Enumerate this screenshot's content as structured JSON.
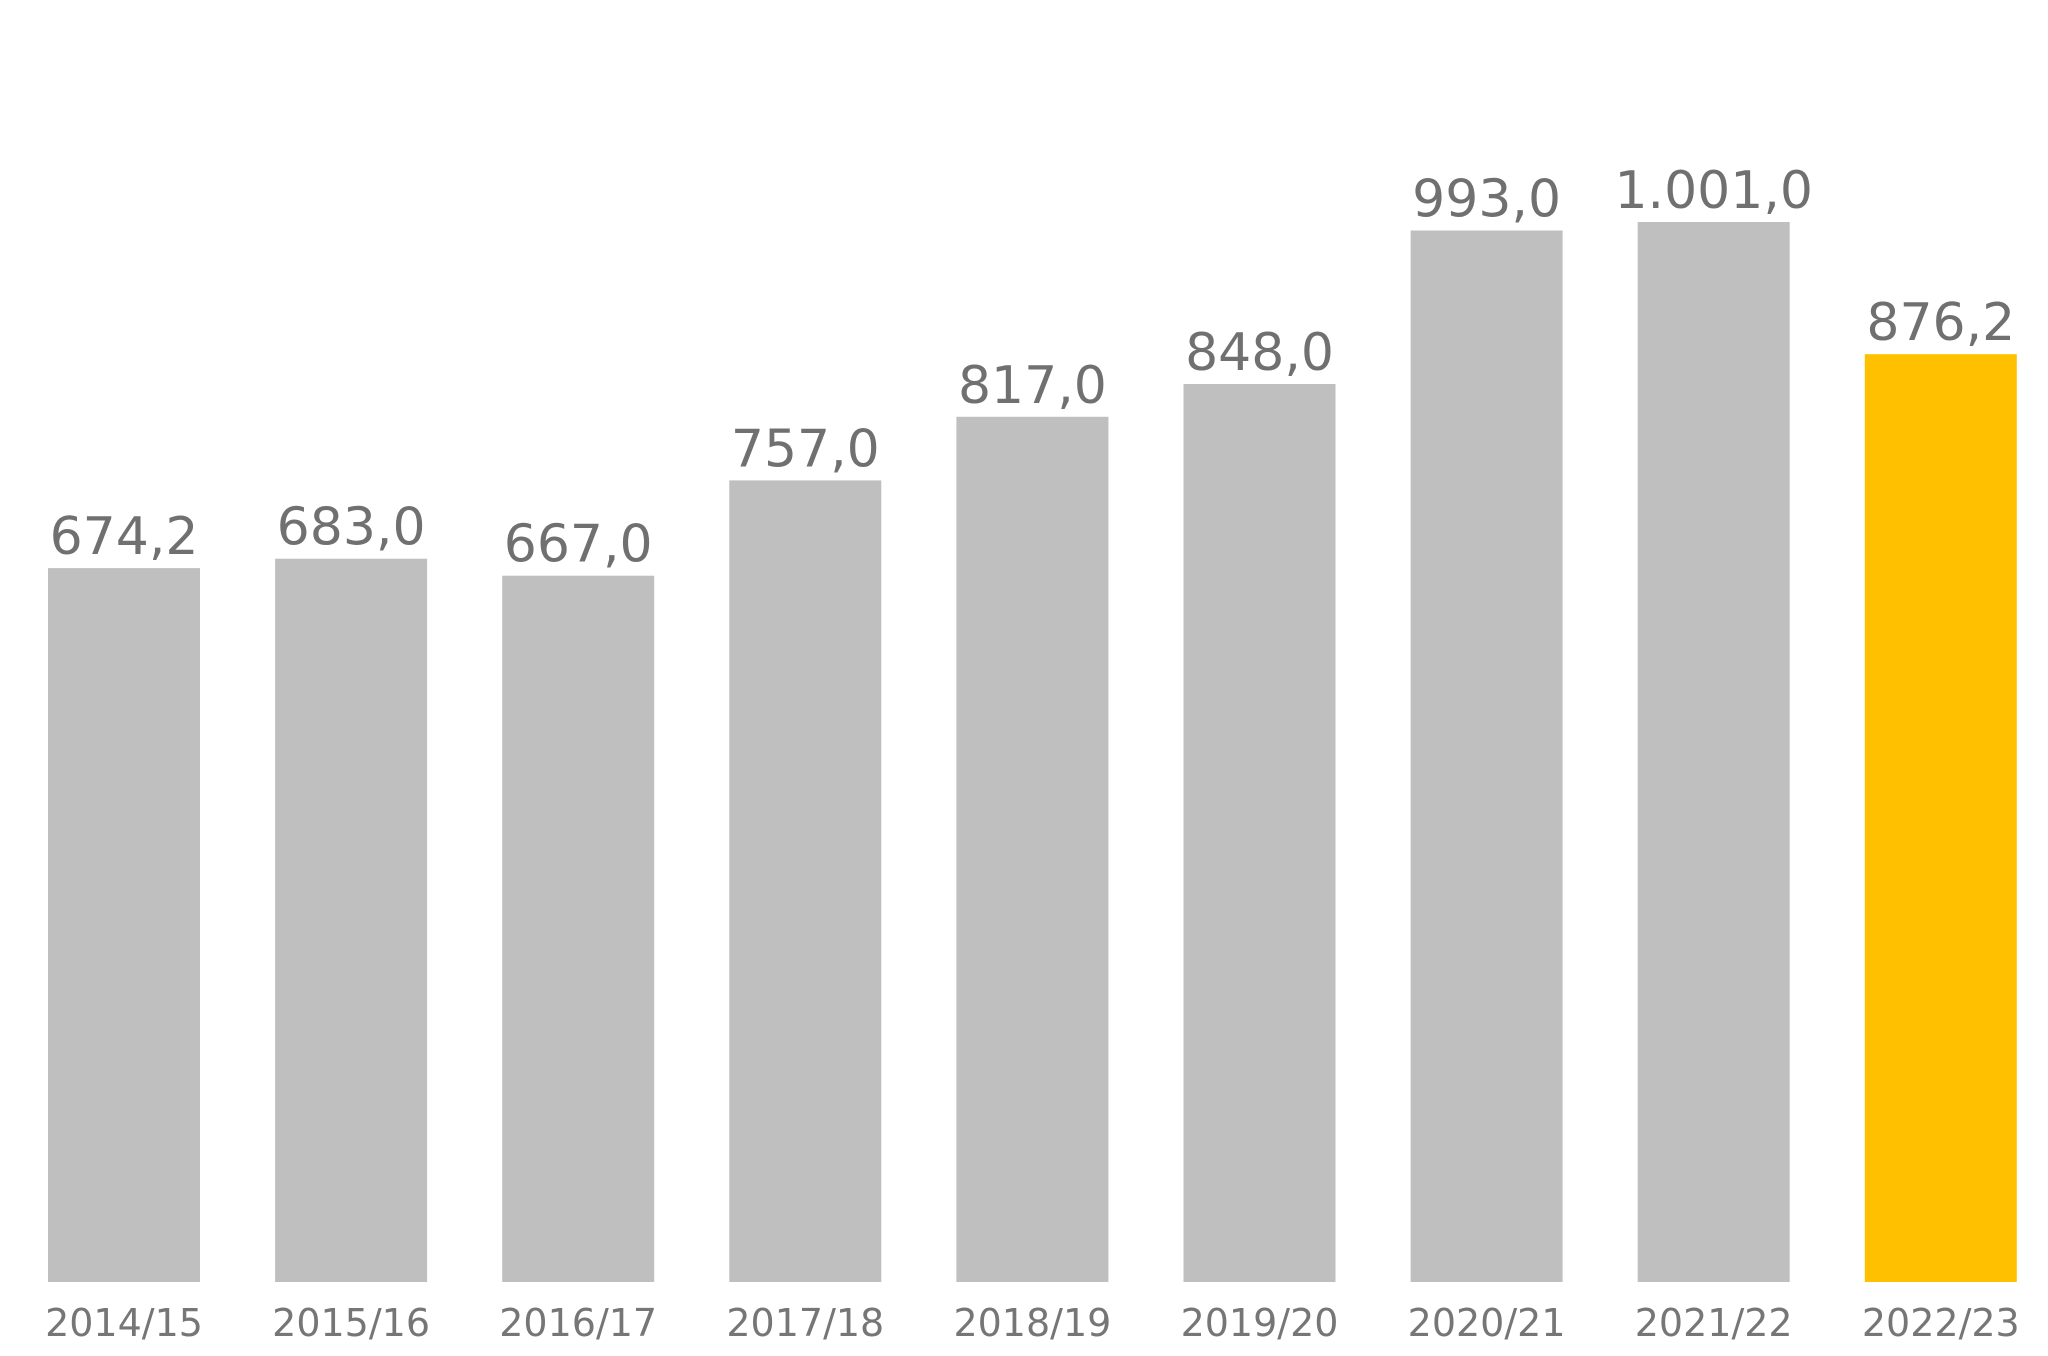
{
  "chart_data": {
    "type": "bar",
    "categories": [
      "2014/15",
      "2015/16",
      "2016/17",
      "2017/18",
      "2018/19",
      "2019/20",
      "2020/21",
      "2021/22",
      "2022/23"
    ],
    "values": [
      674.2,
      683.0,
      667.0,
      757.0,
      817.0,
      848.0,
      993.0,
      1001.0,
      876.2
    ],
    "value_labels": [
      "674,2",
      "683,0",
      "667,0",
      "757,0",
      "817,0",
      "848,0",
      "993,0",
      "1.001,0",
      "876,2"
    ],
    "title": "",
    "xlabel": "",
    "ylabel": "",
    "ylim": [
      0,
      1001.0
    ],
    "grid": false,
    "legend": "none",
    "colors": {
      "default": "#bfbfbf",
      "highlight": "#ffc000",
      "value_label": "#707070",
      "category_label": "#767676"
    },
    "highlight_index": 8
  }
}
